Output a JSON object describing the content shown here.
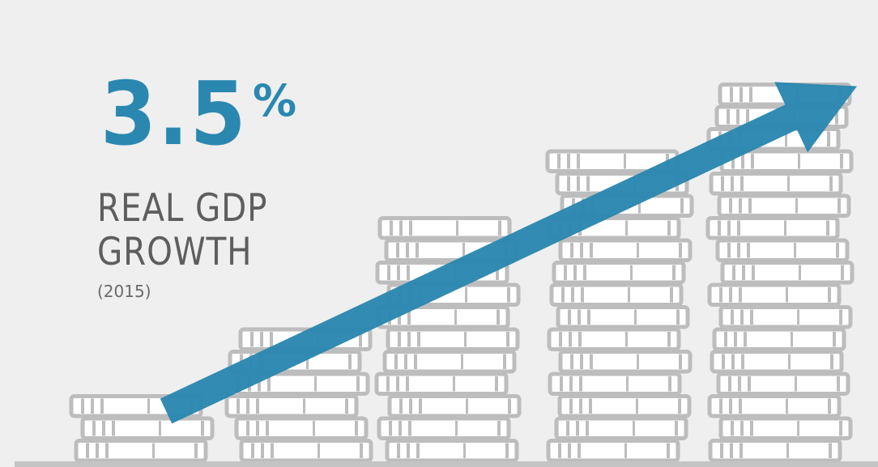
{
  "headline": {
    "number": "3.5",
    "percent_sign": "%",
    "line1": "REAL GDP",
    "line2": "GROWTH",
    "year": "(2015)"
  },
  "colors": {
    "background": "#efefef",
    "accent": "#2a87b0",
    "coin": "#ffffff",
    "coin_outline": "#bdbdbd",
    "text": "#5e5e5e"
  },
  "illustration": {
    "stack_coin_counts": [
      3,
      6,
      11,
      14,
      17
    ],
    "arrow_direction": "up-right",
    "icon": "coin-stack-growth-illustration"
  }
}
